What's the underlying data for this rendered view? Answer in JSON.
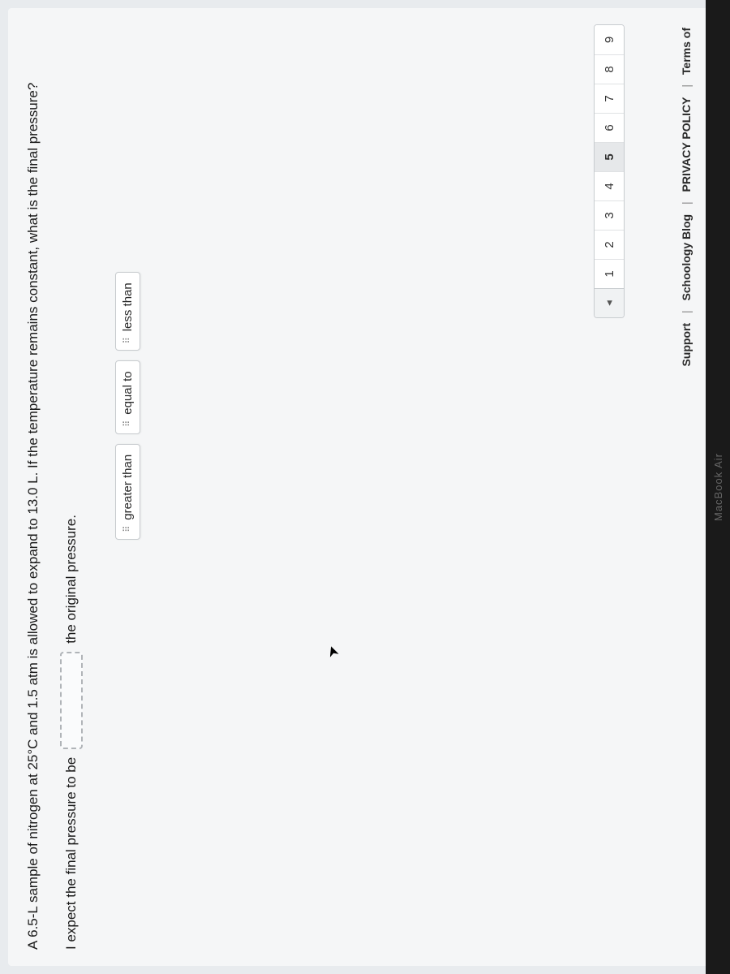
{
  "question": {
    "prompt": "A 6.5-L sample of nitrogen at 25°C and 1.5 atm is allowed to expand to 13.0 L. If the temperature remains constant, what is the final pressure?",
    "sentence_prefix": "I expect the final pressure to be",
    "sentence_suffix": "the original pressure."
  },
  "chips": {
    "items": [
      {
        "label": "greater than"
      },
      {
        "label": "equal to"
      },
      {
        "label": "less than"
      }
    ]
  },
  "pager": {
    "arrow": "◂",
    "pages": [
      "1",
      "2",
      "3",
      "4",
      "5",
      "6",
      "7",
      "8",
      "9"
    ],
    "active_index": 4
  },
  "footer": {
    "support": "Support",
    "blog": "Schoology Blog",
    "privacy": "PRIVACY POLICY",
    "terms": "Terms of"
  },
  "device": {
    "label": "MacBook Air"
  },
  "colors": {
    "card_bg": "#f5f6f7",
    "page_bg": "#e8ebee",
    "chip_border": "#c8cccf",
    "drop_border": "#b0b4b8"
  }
}
